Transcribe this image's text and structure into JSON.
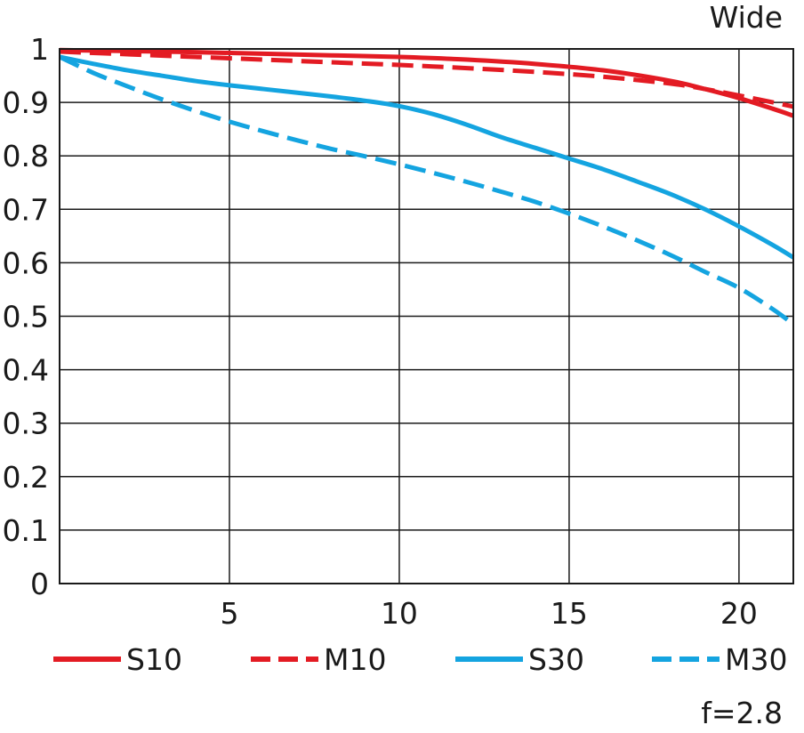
{
  "chart_data": {
    "type": "line",
    "title": "Wide",
    "footnote": "f=2.8",
    "xlabel": "",
    "ylabel": "",
    "xlim": [
      0,
      21.6
    ],
    "ylim": [
      0,
      1
    ],
    "x_ticks": [
      5,
      10,
      15,
      20
    ],
    "y_ticks": [
      0,
      0.1,
      0.2,
      0.3,
      0.4,
      0.5,
      0.6,
      0.7,
      0.8,
      0.9,
      1
    ],
    "y_tick_labels": [
      "0",
      "0.1",
      "0.2",
      "0.3",
      "0.4",
      "0.5",
      "0.6",
      "0.7",
      "0.8",
      "0.9",
      "1"
    ],
    "grid": true,
    "legend_position": "bottom",
    "series": [
      {
        "name": "S10",
        "color": "#e31b23",
        "dash": "solid",
        "x": [
          0,
          2,
          4,
          6,
          8,
          10,
          12,
          14,
          16,
          18,
          19,
          20,
          21,
          21.6
        ],
        "y": [
          0.998,
          0.996,
          0.994,
          0.991,
          0.988,
          0.985,
          0.98,
          0.972,
          0.96,
          0.94,
          0.925,
          0.908,
          0.888,
          0.875
        ]
      },
      {
        "name": "M10",
        "color": "#e31b23",
        "dash": "dashed",
        "x": [
          0,
          2,
          4,
          6,
          8,
          10,
          12,
          14,
          16,
          18,
          19,
          20,
          21,
          21.6
        ],
        "y": [
          0.995,
          0.99,
          0.985,
          0.98,
          0.975,
          0.97,
          0.964,
          0.957,
          0.948,
          0.935,
          0.925,
          0.913,
          0.9,
          0.892
        ]
      },
      {
        "name": "S30",
        "color": "#14a4e0",
        "dash": "solid",
        "x": [
          0,
          1,
          2,
          3,
          4,
          5,
          6,
          7,
          8,
          9,
          10,
          11,
          12,
          13,
          14,
          15,
          16,
          17,
          18,
          19,
          20,
          21,
          21.6
        ],
        "y": [
          0.985,
          0.972,
          0.96,
          0.95,
          0.94,
          0.932,
          0.925,
          0.918,
          0.911,
          0.903,
          0.893,
          0.878,
          0.858,
          0.835,
          0.815,
          0.795,
          0.775,
          0.752,
          0.728,
          0.7,
          0.668,
          0.633,
          0.61
        ]
      },
      {
        "name": "M30",
        "color": "#14a4e0",
        "dash": "dashed",
        "x": [
          0,
          1,
          2,
          3,
          4,
          5,
          6,
          7,
          8,
          9,
          10,
          11,
          12,
          13,
          14,
          15,
          16,
          17,
          18,
          19,
          20,
          21,
          21.6
        ],
        "y": [
          0.985,
          0.955,
          0.93,
          0.906,
          0.884,
          0.864,
          0.846,
          0.829,
          0.813,
          0.799,
          0.784,
          0.768,
          0.751,
          0.733,
          0.714,
          0.692,
          0.668,
          0.642,
          0.614,
          0.583,
          0.553,
          0.513,
          0.485
        ]
      }
    ]
  }
}
